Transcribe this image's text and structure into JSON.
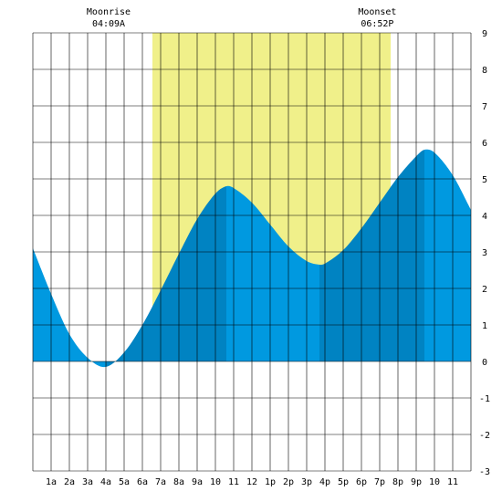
{
  "chart_data": {
    "type": "area",
    "title": "",
    "xlabel": "",
    "ylabel": "",
    "xlim": [
      0,
      24
    ],
    "ylim": [
      -3,
      9
    ],
    "grid": true,
    "x_tick_labels": [
      "1a",
      "2a",
      "3a",
      "4a",
      "5a",
      "6a",
      "7a",
      "8a",
      "9a",
      "10",
      "11",
      "12",
      "1p",
      "2p",
      "3p",
      "4p",
      "5p",
      "6p",
      "7p",
      "8p",
      "9p",
      "10",
      "11"
    ],
    "y_tick_labels": [
      "-3",
      "-2",
      "-1",
      "0",
      "1",
      "2",
      "3",
      "4",
      "5",
      "6",
      "7",
      "8",
      "9"
    ],
    "daylight": {
      "start_hour": 6.55,
      "end_hour": 19.6
    },
    "annotations": [
      {
        "title": "Moonrise",
        "time": "04:09A",
        "hour": 4.15
      },
      {
        "title": "Moonset",
        "time": "06:52P",
        "hour": 18.87
      }
    ],
    "tide_extremes": [
      {
        "hour": 3.98,
        "height": -0.15,
        "kind": "low"
      },
      {
        "hour": 10.6,
        "height": 4.8,
        "kind": "high"
      },
      {
        "hour": 15.7,
        "height": 2.65,
        "kind": "low"
      },
      {
        "hour": 21.45,
        "height": 5.8,
        "kind": "high"
      }
    ],
    "series": [
      {
        "x": [
          0,
          1,
          2,
          3,
          3.98,
          5,
          6,
          7,
          8,
          9,
          10,
          10.6,
          11,
          12,
          13,
          14,
          15,
          15.7,
          16,
          17,
          18,
          19,
          20,
          21,
          21.45,
          22,
          23,
          24
        ],
        "values": [
          3.1,
          1.85,
          0.75,
          0.1,
          -0.15,
          0.25,
          1.0,
          1.95,
          2.95,
          3.9,
          4.6,
          4.8,
          4.75,
          4.35,
          3.75,
          3.15,
          2.75,
          2.65,
          2.68,
          3.05,
          3.65,
          4.35,
          5.05,
          5.62,
          5.8,
          5.72,
          5.1,
          4.15
        ]
      }
    ],
    "colors": {
      "daylight": "#f0f08a",
      "tide_light": "#0099e0",
      "tide_dark": "#0083c2",
      "grid": "#000000"
    }
  }
}
